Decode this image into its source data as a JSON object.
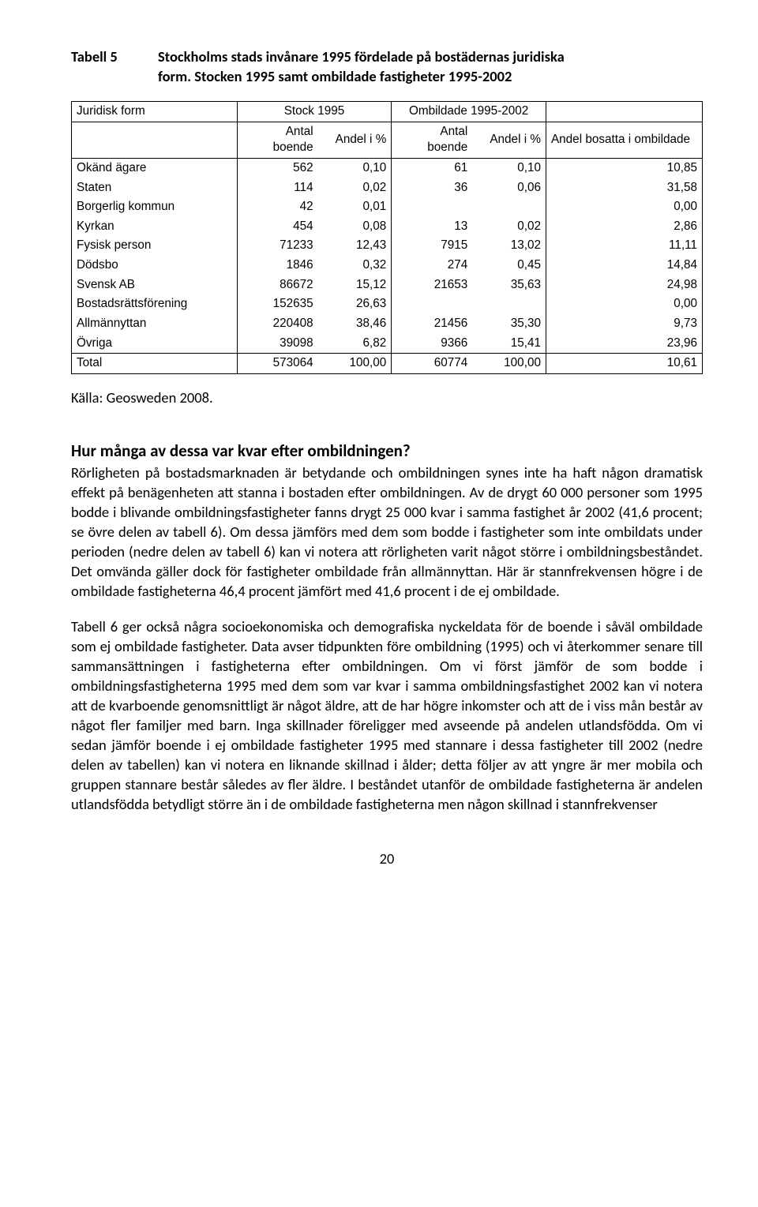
{
  "table5": {
    "label": "Tabell 5",
    "title_line1": "Stockholms stads invånare 1995 fördelade på bostädernas juridiska",
    "title_line2": "form. Stocken 1995 samt ombildade fastigheter 1995-2002",
    "header": {
      "jurid": "Juridisk form",
      "stock": "Stock 1995",
      "ombild": "Ombildade 1995-2002",
      "antal": "Antal boende",
      "andel": "Andel i %",
      "bosatta": "Andel bosatta i ombildade"
    },
    "rows": [
      {
        "label": "Okänd ägare",
        "a": "562",
        "b": "0,10",
        "c": "61",
        "d": "0,10",
        "e": "10,85"
      },
      {
        "label": "Staten",
        "a": "114",
        "b": "0,02",
        "c": "36",
        "d": "0,06",
        "e": "31,58"
      },
      {
        "label": "Borgerlig kommun",
        "a": "42",
        "b": "0,01",
        "c": "",
        "d": "",
        "e": "0,00"
      },
      {
        "label": "Kyrkan",
        "a": "454",
        "b": "0,08",
        "c": "13",
        "d": "0,02",
        "e": "2,86"
      },
      {
        "label": "Fysisk person",
        "a": "71233",
        "b": "12,43",
        "c": "7915",
        "d": "13,02",
        "e": "11,11"
      },
      {
        "label": "Dödsbo",
        "a": "1846",
        "b": "0,32",
        "c": "274",
        "d": "0,45",
        "e": "14,84"
      },
      {
        "label": "Svensk AB",
        "a": "86672",
        "b": "15,12",
        "c": "21653",
        "d": "35,63",
        "e": "24,98"
      },
      {
        "label": "Bostadsrättsförening",
        "a": "152635",
        "b": "26,63",
        "c": "",
        "d": "",
        "e": "0,00"
      },
      {
        "label": "Allmännyttan",
        "a": "220408",
        "b": "38,46",
        "c": "21456",
        "d": "35,30",
        "e": "9,73"
      },
      {
        "label": "Övriga",
        "a": "39098",
        "b": "6,82",
        "c": "9366",
        "d": "15,41",
        "e": "23,96"
      }
    ],
    "total": {
      "label": "Total",
      "a": "573064",
      "b": "100,00",
      "c": "60774",
      "d": "100,00",
      "e": "10,61"
    }
  },
  "source": "Källa: Geosweden 2008.",
  "section_heading": "Hur många av dessa var kvar efter ombildningen?",
  "para1": "Rörligheten på bostadsmarknaden är betydande och ombildningen synes inte ha haft någon dramatisk effekt på benägenheten att stanna i bostaden efter ombildningen. Av de drygt 60 000 personer som 1995 bodde i blivande ombildningsfastigheter fanns drygt 25 000 kvar i samma fastighet år 2002 (41,6 procent; se övre delen av tabell 6). Om dessa jämförs med dem som bodde i fastigheter som inte ombildats under perioden (nedre delen av tabell 6) kan vi notera att rörligheten varit något större i ombildningsbeståndet. Det omvända gäller dock för fastigheter ombildade från allmännyttan. Här är stannfrekvensen högre i de ombildade fastigheterna 46,4 procent jämfört med 41,6 procent i de ej ombildade.",
  "para2": "Tabell 6 ger också några socioekonomiska och demografiska nyckeldata för de boende i såväl ombildade som ej ombildade fastigheter. Data avser tidpunkten före ombildning (1995) och vi återkommer senare till sammansättningen i fastigheterna efter ombildningen. Om vi först jämför de som bodde i ombildningsfastigheterna 1995 med dem som var kvar i samma ombildningsfastighet 2002 kan vi notera att de kvarboende genomsnittligt är något äldre, att de har högre inkomster och att de i viss mån består av något fler familjer med barn. Inga skillnader föreligger med avseende på andelen utlandsfödda. Om vi sedan jämför boende i ej ombildade fastigheter 1995 med stannare i dessa fastigheter till 2002 (nedre delen av tabellen) kan vi notera en liknande skillnad i ålder; detta följer av att yngre är mer mobila och gruppen stannare består således av fler äldre. I beståndet utanför de ombildade fastigheterna är andelen utlandsfödda betydligt större än i de ombildade fastigheterna men någon skillnad i stannfrekvenser",
  "page_number": "20"
}
